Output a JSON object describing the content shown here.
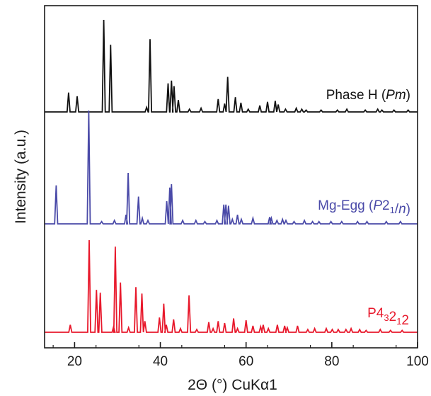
{
  "chart_data": {
    "type": "line",
    "xlabel": "2Θ (°)  CuKα1",
    "ylabel": "Intensity (a.u.)",
    "xlim": [
      13,
      100
    ],
    "xticks": [
      20,
      40,
      60,
      80,
      100
    ],
    "y_ticks_shown": false,
    "grid": false,
    "legend": "none",
    "series": [
      {
        "name_parts": [
          {
            "text": "Phase H (",
            "style": "normal"
          },
          {
            "text": "Pm",
            "style": "italic"
          },
          {
            "text": ")",
            "style": "normal"
          }
        ],
        "color": "#111111",
        "peaks": [
          [
            18.6,
            0.21
          ],
          [
            20.6,
            0.17
          ],
          [
            26.8,
            1.0
          ],
          [
            28.4,
            0.73
          ],
          [
            36.8,
            0.05
          ],
          [
            37.6,
            0.79
          ],
          [
            41.8,
            0.31
          ],
          [
            42.6,
            0.34
          ],
          [
            43.2,
            0.28
          ],
          [
            44.2,
            0.13
          ],
          [
            46.8,
            0.03
          ],
          [
            49.5,
            0.04
          ],
          [
            53.5,
            0.14
          ],
          [
            55.0,
            0.09
          ],
          [
            55.7,
            0.38
          ],
          [
            57.5,
            0.16
          ],
          [
            58.8,
            0.1
          ],
          [
            60.5,
            0.03
          ],
          [
            63.2,
            0.07
          ],
          [
            65.0,
            0.11
          ],
          [
            66.8,
            0.12
          ],
          [
            67.5,
            0.08
          ],
          [
            69.2,
            0.03
          ],
          [
            71.7,
            0.04
          ],
          [
            73.0,
            0.03
          ],
          [
            74.0,
            0.02
          ],
          [
            77.5,
            0.02
          ],
          [
            81.3,
            0.02
          ],
          [
            83.5,
            0.03
          ],
          [
            87.8,
            0.02
          ],
          [
            90.7,
            0.03
          ],
          [
            91.7,
            0.02
          ],
          [
            94.5,
            0.02
          ],
          [
            97.8,
            0.02
          ]
        ]
      },
      {
        "name_parts": [
          {
            "text": "Mg-Egg (",
            "style": "normal"
          },
          {
            "text": "P",
            "style": "italic"
          },
          {
            "text": "2",
            "style": "normal"
          },
          {
            "text": "1",
            "style": "sub"
          },
          {
            "text": "/",
            "style": "normal"
          },
          {
            "text": "n",
            "style": "italic"
          },
          {
            "text": ")",
            "style": "normal"
          }
        ],
        "color": "#4a4aa8",
        "peaks": [
          [
            15.7,
            0.34
          ],
          [
            23.3,
            1.0
          ],
          [
            26.3,
            0.02
          ],
          [
            29.3,
            0.03
          ],
          [
            32.0,
            0.08
          ],
          [
            32.5,
            0.45
          ],
          [
            34.9,
            0.24
          ],
          [
            35.8,
            0.05
          ],
          [
            37.1,
            0.03
          ],
          [
            41.5,
            0.2
          ],
          [
            42.2,
            0.32
          ],
          [
            42.6,
            0.35
          ],
          [
            45.2,
            0.03
          ],
          [
            48.3,
            0.03
          ],
          [
            50.4,
            0.02
          ],
          [
            53.2,
            0.03
          ],
          [
            54.8,
            0.17
          ],
          [
            55.3,
            0.17
          ],
          [
            55.9,
            0.16
          ],
          [
            56.8,
            0.04
          ],
          [
            58.0,
            0.08
          ],
          [
            58.9,
            0.04
          ],
          [
            61.6,
            0.05
          ],
          [
            65.5,
            0.06
          ],
          [
            65.9,
            0.05
          ],
          [
            67.2,
            0.03
          ],
          [
            68.5,
            0.04
          ],
          [
            69.3,
            0.03
          ],
          [
            71.2,
            0.02
          ],
          [
            73.6,
            0.03
          ],
          [
            75.5,
            0.02
          ],
          [
            77.0,
            0.02
          ],
          [
            79.8,
            0.02
          ],
          [
            82.3,
            0.02
          ],
          [
            86.0,
            0.02
          ],
          [
            88.2,
            0.02
          ],
          [
            92.7,
            0.02
          ],
          [
            96.0,
            0.02
          ]
        ]
      },
      {
        "name_parts": [
          {
            "text": "P4",
            "style": "normal"
          },
          {
            "text": "3",
            "style": "sub"
          },
          {
            "text": "2",
            "style": "normal"
          },
          {
            "text": "1",
            "style": "sub"
          },
          {
            "text": "2",
            "style": "normal"
          }
        ],
        "color": "#e8192c",
        "peaks": [
          [
            19.0,
            0.08
          ],
          [
            23.4,
            1.0
          ],
          [
            25.1,
            0.46
          ],
          [
            26.0,
            0.43
          ],
          [
            29.1,
            0.06
          ],
          [
            29.5,
            0.93
          ],
          [
            30.7,
            0.54
          ],
          [
            32.6,
            0.05
          ],
          [
            34.3,
            0.49
          ],
          [
            35.7,
            0.42
          ],
          [
            36.4,
            0.12
          ],
          [
            39.8,
            0.16
          ],
          [
            40.8,
            0.31
          ],
          [
            41.4,
            0.08
          ],
          [
            43.1,
            0.14
          ],
          [
            44.7,
            0.04
          ],
          [
            46.7,
            0.4
          ],
          [
            48.5,
            0.03
          ],
          [
            51.3,
            0.11
          ],
          [
            52.3,
            0.04
          ],
          [
            53.5,
            0.12
          ],
          [
            55.0,
            0.1
          ],
          [
            57.1,
            0.15
          ],
          [
            58.0,
            0.04
          ],
          [
            60.0,
            0.13
          ],
          [
            61.6,
            0.07
          ],
          [
            63.4,
            0.06
          ],
          [
            64.0,
            0.08
          ],
          [
            65.2,
            0.04
          ],
          [
            67.3,
            0.08
          ],
          [
            69.0,
            0.07
          ],
          [
            69.6,
            0.05
          ],
          [
            72.0,
            0.07
          ],
          [
            74.4,
            0.03
          ],
          [
            76.0,
            0.04
          ],
          [
            78.7,
            0.04
          ],
          [
            80.1,
            0.03
          ],
          [
            81.5,
            0.03
          ],
          [
            83.3,
            0.03
          ],
          [
            84.5,
            0.04
          ],
          [
            86.5,
            0.03
          ],
          [
            88.0,
            0.02
          ],
          [
            91.3,
            0.03
          ],
          [
            93.7,
            0.02
          ],
          [
            96.4,
            0.02
          ]
        ]
      }
    ]
  }
}
